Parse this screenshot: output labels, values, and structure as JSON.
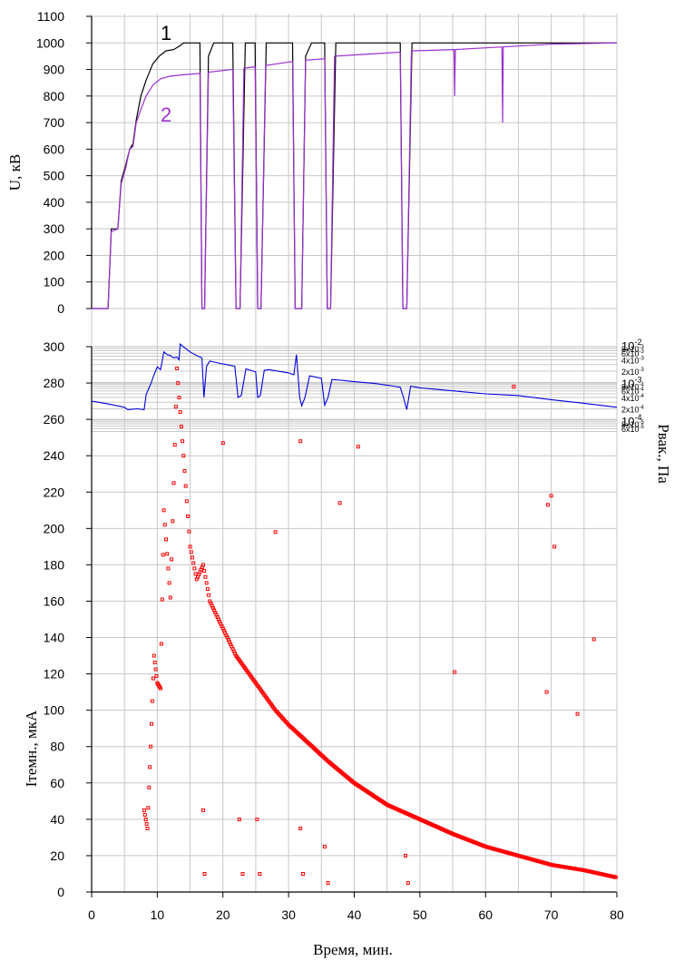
{
  "chart_data": [
    {
      "type": "line",
      "ylabel": "U, кВ",
      "xlim": [
        0,
        80
      ],
      "ylim": [
        0,
        1100
      ],
      "yticks": [
        0,
        100,
        200,
        300,
        400,
        500,
        600,
        700,
        800,
        900,
        1000,
        1100
      ],
      "series": [
        {
          "name": "1",
          "color": "#000000",
          "x": [
            0,
            2.5,
            3,
            4,
            4.5,
            5.2,
            5.8,
            6.3,
            6.8,
            7.5,
            8.3,
            9.3,
            10.3,
            11.3,
            12.5,
            13.5,
            14,
            16.5,
            16.8,
            17.2,
            17.8,
            18.6,
            21.5,
            22,
            22.6,
            23.4,
            24.9,
            25.3,
            25.8,
            26.6,
            30.6,
            31,
            31.5,
            32,
            32.6,
            33.5,
            35.5,
            35.9,
            36.4,
            37.2,
            47,
            47.4,
            48,
            48.8,
            60,
            80
          ],
          "values": [
            0,
            0,
            300,
            300,
            480,
            540,
            600,
            620,
            710,
            800,
            860,
            920,
            950,
            970,
            975,
            990,
            1000,
            1000,
            0,
            0,
            950,
            1000,
            1000,
            0,
            0,
            1000,
            1000,
            0,
            0,
            1000,
            1000,
            0,
            0,
            0,
            950,
            1000,
            1000,
            0,
            0,
            1000,
            1000,
            0,
            0,
            1000,
            1000,
            1000
          ]
        },
        {
          "name": "2",
          "color": "#9b30d0",
          "x": [
            0,
            2.5,
            3,
            4,
            4.5,
            5.2,
            5.8,
            6.3,
            6.8,
            7.5,
            8.3,
            9.3,
            10.5,
            12,
            14,
            16.5,
            16.8,
            17.2,
            17.8,
            21.5,
            22,
            22.6,
            23.2,
            24.9,
            25.3,
            25.8,
            26.5,
            30.6,
            31,
            32,
            32.6,
            35.5,
            35.9,
            36.4,
            37,
            47,
            47.4,
            48,
            48.7,
            55.2,
            55.3,
            55.4,
            62.5,
            62.6,
            62.7,
            70,
            80
          ],
          "values": [
            0,
            0,
            290,
            300,
            470,
            530,
            600,
            610,
            700,
            750,
            800,
            840,
            865,
            875,
            880,
            885,
            0,
            0,
            890,
            900,
            0,
            0,
            905,
            910,
            0,
            0,
            915,
            930,
            0,
            0,
            935,
            940,
            0,
            0,
            950,
            965,
            0,
            0,
            970,
            975,
            800,
            975,
            985,
            700,
            985,
            995,
            1000
          ]
        }
      ]
    },
    {
      "type": "line",
      "ylabel": "Pвак., Па",
      "yscale": "log",
      "xlim": [
        0,
        80
      ],
      "ylim": [
        5e-05,
        0.012
      ],
      "ytick_labels": [
        "10",
        "8x10",
        "6x10",
        "4x10",
        "2x10",
        "10",
        "8x10",
        "6x10",
        "4x10",
        "2x10",
        "10",
        "8x10",
        "6x10"
      ],
      "ytick_exponents": [
        "-2",
        "-3",
        "-3",
        "-3",
        "-3",
        "-3",
        "-4",
        "-4",
        "-4",
        "-4",
        "-4",
        "-5",
        "-5"
      ],
      "series": [
        {
          "color": "#0000dd",
          "x": [
            0,
            1,
            3,
            5,
            5.5,
            7,
            8,
            8.3,
            9,
            9.5,
            10,
            10.5,
            11,
            11.5,
            12,
            12.5,
            13,
            13.3,
            13.5,
            14,
            15,
            16,
            16.8,
            17.1,
            17.5,
            18,
            20,
            21.8,
            22.3,
            22.8,
            23.5,
            25,
            25.3,
            25.7,
            26.3,
            27,
            30,
            30.8,
            31.2,
            31.7,
            32,
            32.5,
            33.2,
            35,
            35.5,
            36,
            36.6,
            38,
            40,
            43,
            46,
            47,
            47.5,
            48,
            48.6,
            50,
            55,
            60,
            65,
            70,
            75,
            80
          ],
          "values": [
            0.00032,
            0.0003,
            0.00026,
            0.00022,
            0.00019,
            0.0002,
            0.00019,
            0.00048,
            0.0009,
            0.0016,
            0.0026,
            0.0022,
            0.0065,
            0.0055,
            0.0052,
            0.0045,
            0.0047,
            0.004,
            0.0105,
            0.0088,
            0.0065,
            0.0052,
            0.0045,
            0.0004,
            0.0027,
            0.0037,
            0.0031,
            0.0027,
            0.0004,
            0.00045,
            0.0023,
            0.0019,
            0.0004,
            0.00045,
            0.0021,
            0.0022,
            0.0018,
            0.0016,
            0.0055,
            0.0004,
            0.00024,
            0.0004,
            0.0015,
            0.0013,
            0.00025,
            0.0004,
            0.0012,
            0.00115,
            0.00105,
            0.00095,
            0.0008,
            0.00075,
            0.0004,
            0.00019,
            0.0008,
            0.00072,
            0.0006,
            0.0005,
            0.00045,
            0.00035,
            0.00028,
            0.00022
          ]
        }
      ]
    },
    {
      "type": "scatter",
      "ylabel": "Iтемн., мкА",
      "xlabel": "Время, мин.",
      "xlim": [
        0,
        80
      ],
      "xticks": [
        0,
        10,
        20,
        30,
        40,
        50,
        60,
        70,
        80
      ],
      "ylim": [
        0,
        300
      ],
      "yticks": [
        0,
        20,
        40,
        60,
        80,
        100,
        120,
        140,
        160,
        180,
        200,
        220,
        240,
        260,
        280,
        300
      ],
      "series": [
        {
          "color": "#ff0000",
          "trend_x": [
            8,
            8.5,
            9,
            9.5,
            10,
            10.5,
            11,
            12,
            13,
            14,
            15,
            16,
            17,
            18,
            20,
            22,
            25,
            28,
            30,
            33,
            36,
            40,
            45,
            50,
            55,
            60,
            65,
            70,
            75,
            80
          ],
          "trend_values": [
            45,
            35,
            80,
            130,
            115,
            112,
            210,
            162,
            288,
            240,
            190,
            172,
            180,
            160,
            145,
            130,
            115,
            100,
            92,
            82,
            72,
            60,
            48,
            40,
            32,
            25,
            20,
            15,
            12,
            8
          ],
          "outliers_x": [
            17,
            17.2,
            22.5,
            23,
            25.2,
            25.6,
            31.8,
            32.2,
            35.5,
            36,
            47.8,
            48.2,
            20,
            28,
            31.8,
            37.8,
            40.6,
            55.3,
            64.3,
            69.5,
            70,
            70.5,
            74,
            76.5,
            69.3
          ],
          "outliers_values": [
            45,
            10,
            40,
            10,
            40,
            10,
            35,
            10,
            25,
            5,
            20,
            5,
            247,
            198,
            248,
            214,
            245,
            121,
            278,
            213,
            218,
            190,
            98,
            139,
            110
          ]
        }
      ]
    }
  ],
  "labels": {
    "series1": "1",
    "series2": "2"
  }
}
